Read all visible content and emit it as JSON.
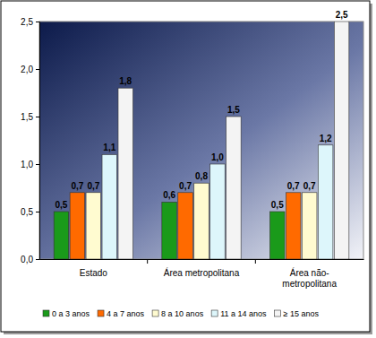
{
  "chart_data": {
    "type": "bar",
    "categories": [
      "Estado",
      "Área metropolitana",
      "Área não-metropolitana"
    ],
    "series": [
      {
        "name": "0 a 3 anos",
        "color": "#1a9a1a",
        "values": [
          0.5,
          0.6,
          0.5
        ],
        "value_labels": [
          "0,5",
          "0,6",
          "0,5"
        ]
      },
      {
        "name": "4 a 7 anos",
        "color": "#ff6a00",
        "values": [
          0.7,
          0.7,
          0.7
        ],
        "value_labels": [
          "0,7",
          "0,7",
          "0,7"
        ]
      },
      {
        "name": "8 a 10 anos",
        "color": "#fffbd0",
        "values": [
          0.7,
          0.8,
          0.7
        ],
        "value_labels": [
          "0,7",
          "0,8",
          "0,7"
        ]
      },
      {
        "name": "11 a 14 anos",
        "color": "#ddf6fb",
        "values": [
          1.1,
          1.0,
          1.2
        ],
        "value_labels": [
          "1,1",
          "1,0",
          "1,2"
        ]
      },
      {
        "name": "≥ 15 anos",
        "color": "#f4f4f4",
        "values": [
          1.8,
          1.5,
          2.5
        ],
        "value_labels": [
          "1,8",
          "1,5",
          "2,5"
        ]
      }
    ],
    "ylim": [
      0,
      2.5
    ],
    "yticks": [
      {
        "value": 0,
        "label": "0,0"
      },
      {
        "value": 0.5,
        "label": "0,5"
      },
      {
        "value": 1,
        "label": "1,0"
      },
      {
        "value": 1.5,
        "label": "1,5"
      },
      {
        "value": 2,
        "label": "2,0"
      },
      {
        "value": 2.5,
        "label": "2,5"
      }
    ],
    "grid": false,
    "data_labels": true,
    "legend": "bottom"
  }
}
